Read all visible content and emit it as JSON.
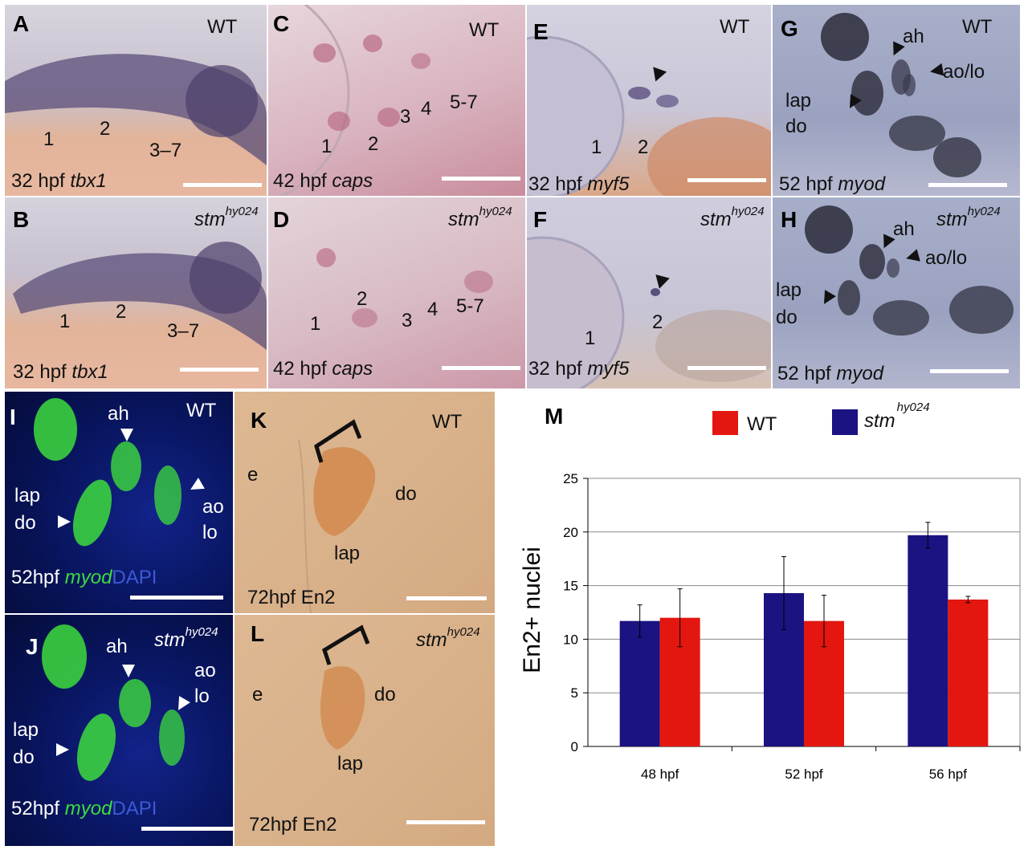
{
  "panels": {
    "A": {
      "letter": "A",
      "condition": "WT",
      "caption_stage": "32 hpf",
      "caption_gene": "tbx1",
      "labels": [
        "1",
        "2",
        "3–7"
      ]
    },
    "B": {
      "letter": "B",
      "condition": "stm",
      "condition_sup": "hy024",
      "caption_stage": "32 hpf",
      "caption_gene": "tbx1",
      "labels": [
        "1",
        "2",
        "3–7"
      ]
    },
    "C": {
      "letter": "C",
      "condition": "WT",
      "caption_stage": "42 hpf",
      "caption_gene": "caps",
      "labels": [
        "1",
        "2",
        "3",
        "4",
        "5-7"
      ]
    },
    "D": {
      "letter": "D",
      "condition": "stm",
      "condition_sup": "hy024",
      "caption_stage": "42 hpf",
      "caption_gene": "caps",
      "labels": [
        "1",
        "2",
        "3",
        "4",
        "5-7"
      ]
    },
    "E": {
      "letter": "E",
      "condition": "WT",
      "caption_stage": "32 hpf",
      "caption_gene": "myf5",
      "labels": [
        "1",
        "2"
      ]
    },
    "F": {
      "letter": "F",
      "condition": "stm",
      "condition_sup": "hy024",
      "caption_stage": "32 hpf",
      "caption_gene": "myf5",
      "labels": [
        "1",
        "2"
      ]
    },
    "G": {
      "letter": "G",
      "condition": "WT",
      "caption_stage": "52 hpf",
      "caption_gene": "myod",
      "labels": [
        "ah",
        "ao/lo",
        "lap",
        "do"
      ]
    },
    "H": {
      "letter": "H",
      "condition": "stm",
      "condition_sup": "hy024",
      "caption_stage": "52 hpf",
      "caption_gene": "myod",
      "labels": [
        "ah",
        "ao/lo",
        "lap",
        "do"
      ]
    },
    "I": {
      "letter": "I",
      "condition": "WT",
      "caption_stage": "52hpf",
      "caption_gene": "myod",
      "caption_stain": "DAPI",
      "labels": [
        "ah",
        "lap",
        "do",
        "ao",
        "lo"
      ]
    },
    "J": {
      "letter": "J",
      "condition": "stm",
      "condition_sup": "hy024",
      "caption_stage": "52hpf",
      "caption_gene": "myod",
      "caption_stain": "DAPI",
      "labels": [
        "ah",
        "ao",
        "lo",
        "lap",
        "do"
      ]
    },
    "K": {
      "letter": "K",
      "condition": "WT",
      "caption": "72hpf En2",
      "labels": [
        "e",
        "do",
        "lap"
      ]
    },
    "L": {
      "letter": "L",
      "condition": "stm",
      "condition_sup": "hy024",
      "caption": "72hpf En2",
      "labels": [
        "e",
        "do",
        "lap"
      ]
    }
  },
  "colors": {
    "wt_bar": "#e3170f",
    "mutant_bar": "#1a1381",
    "gfp": "#3ddc3d",
    "dapi": "#0d1f7a"
  },
  "chart_data": {
    "type": "bar",
    "panel_letter": "M",
    "title": "",
    "ylabel": "En2+ nuclei",
    "xlabel": "",
    "categories": [
      "48 hpf",
      "52 hpf",
      "56 hpf"
    ],
    "ylim": [
      0,
      25
    ],
    "yticks": [
      0,
      5,
      10,
      15,
      20,
      25
    ],
    "ytick_labels": [
      "0",
      "5",
      "10",
      "15",
      "20",
      "25"
    ],
    "grid": true,
    "legend_position": "top",
    "series": [
      {
        "name": "stm",
        "name_sup": "hy024",
        "color": "#1a1381",
        "values": [
          11.7,
          14.3,
          19.7
        ],
        "errors": [
          1.5,
          3.4,
          1.2
        ]
      },
      {
        "name": "WT",
        "color": "#e3170f",
        "values": [
          12.0,
          11.7,
          13.7
        ],
        "errors": [
          2.7,
          2.4,
          0.3
        ]
      }
    ],
    "legend_order": [
      "WT",
      "stm"
    ]
  }
}
